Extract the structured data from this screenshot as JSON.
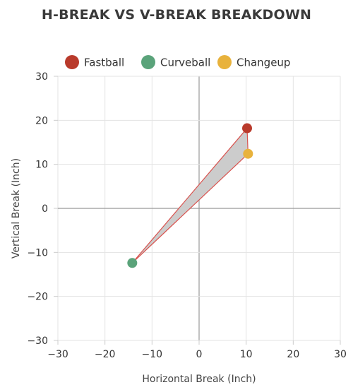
{
  "chart_data": {
    "type": "scatter",
    "title": "H-BREAK VS V-BREAK BREAKDOWN",
    "xlabel": "Horizontal Break (Inch)",
    "ylabel": "Vertical Break (Inch)",
    "xlim": [
      -30,
      30
    ],
    "ylim": [
      -30,
      30
    ],
    "xticks": [
      -30,
      -20,
      -10,
      0,
      10,
      20,
      30
    ],
    "yticks": [
      -30,
      -20,
      -10,
      0,
      10,
      20,
      30
    ],
    "xtick_labels": [
      "−30",
      "−20",
      "−10",
      "0",
      "10",
      "20",
      "30"
    ],
    "ytick_labels": [
      "−30",
      "−20",
      "−10",
      "0",
      "10",
      "20",
      "30"
    ],
    "grid": true,
    "legend_position": "top",
    "series": [
      {
        "name": "Fastball",
        "x": 10.2,
        "y": 18.2,
        "color": "#b93a2b"
      },
      {
        "name": "Curveball",
        "x": -14.2,
        "y": -12.4,
        "color": "#5aa37a"
      },
      {
        "name": "Changeup",
        "x": 10.4,
        "y": 12.4,
        "color": "#e8b23c"
      }
    ],
    "polygon": {
      "order": [
        "Fastball",
        "Changeup",
        "Curveball"
      ],
      "fill": "#cccccc",
      "stroke": "#d9534f"
    }
  }
}
